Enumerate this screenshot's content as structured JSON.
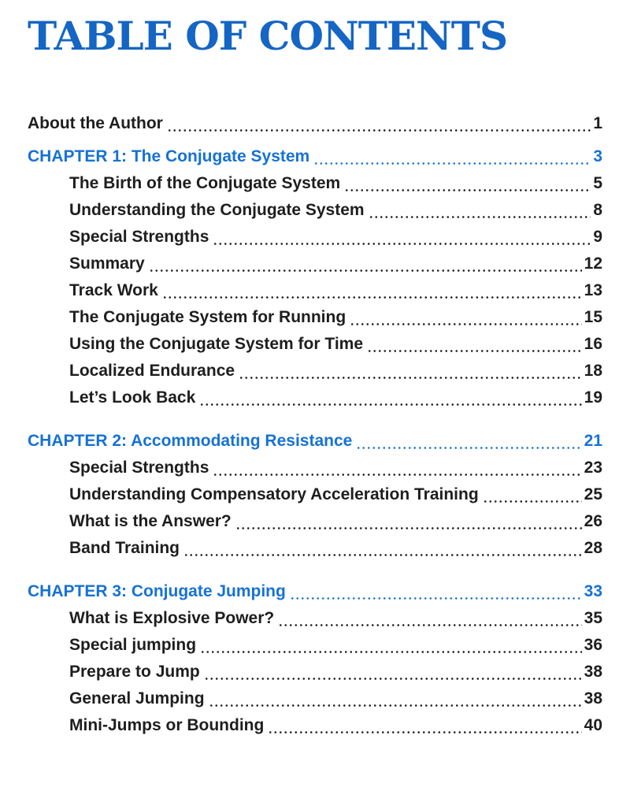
{
  "page": {
    "title": "TABLE OF CONTENTS",
    "colors": {
      "title_blue": "#1565c4",
      "chapter_blue": "#1672d4",
      "body_text": "#1e1e1e",
      "background": "#ffffff"
    }
  },
  "toc": {
    "front_matter": [
      {
        "label": "About the Author",
        "page": "1"
      }
    ],
    "chapters": [
      {
        "heading": "CHAPTER 1: The Conjugate System",
        "page": "3",
        "sections": [
          {
            "label": "The Birth of the Conjugate System",
            "page": "5"
          },
          {
            "label": "Understanding the Conjugate System",
            "page": "8"
          },
          {
            "label": "Special Strengths",
            "page": "9"
          },
          {
            "label": "Summary",
            "page": "12"
          },
          {
            "label": "Track Work",
            "page": "13"
          },
          {
            "label": "The Conjugate System for Running",
            "page": "15"
          },
          {
            "label": "Using the Conjugate System for Time",
            "page": "16"
          },
          {
            "label": "Localized Endurance",
            "page": "18"
          },
          {
            "label": "Let’s Look Back",
            "page": "19"
          }
        ]
      },
      {
        "heading": "CHAPTER 2: Accommodating Resistance",
        "page": "21",
        "sections": [
          {
            "label": "Special Strengths",
            "page": "23"
          },
          {
            "label": "Understanding Compensatory Acceleration Training",
            "page": "25"
          },
          {
            "label": "What is the Answer?",
            "page": "26"
          },
          {
            "label": "Band Training",
            "page": "28"
          }
        ]
      },
      {
        "heading": "CHAPTER 3: Conjugate Jumping",
        "page": "33",
        "sections": [
          {
            "label": "What is Explosive Power?",
            "page": "35"
          },
          {
            "label": "Special jumping",
            "page": "36"
          },
          {
            "label": "Prepare to Jump",
            "page": "38"
          },
          {
            "label": "General Jumping",
            "page": "38"
          },
          {
            "label": "Mini-Jumps or Bounding",
            "page": "40"
          }
        ]
      }
    ]
  }
}
